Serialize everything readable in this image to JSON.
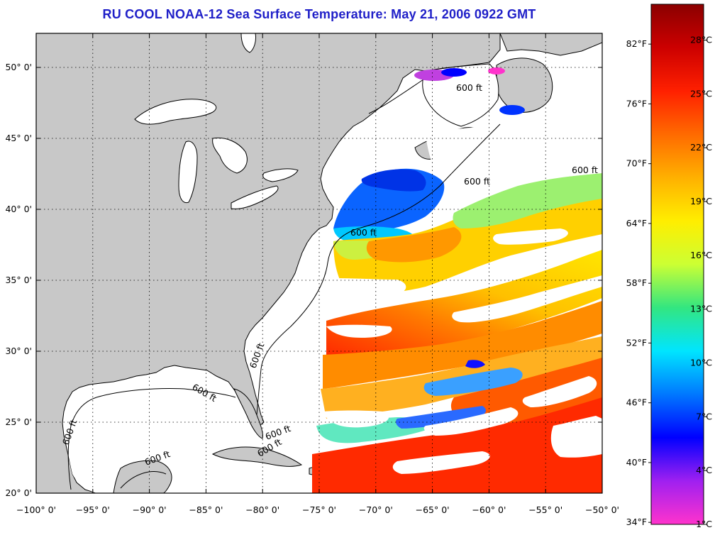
{
  "title": "RU COOL  NOAA-12  Sea Surface Temperature:  May 21, 2006 0922 GMT",
  "map": {
    "lon_range": [
      -100,
      -50
    ],
    "lat_range": [
      20,
      52.4
    ],
    "grid": true,
    "lon_ticks": [
      {
        "value": -100,
        "label": "−100° 0'"
      },
      {
        "value": -95,
        "label": "−95° 0'"
      },
      {
        "value": -90,
        "label": "−90° 0'"
      },
      {
        "value": -85,
        "label": "−85° 0'"
      },
      {
        "value": -80,
        "label": "−80° 0'"
      },
      {
        "value": -75,
        "label": "−75° 0'"
      },
      {
        "value": -70,
        "label": "−70° 0'"
      },
      {
        "value": -65,
        "label": "−65° 0'"
      },
      {
        "value": -60,
        "label": "−60° 0'"
      },
      {
        "value": -55,
        "label": "−55° 0'"
      },
      {
        "value": -50,
        "label": "−50° 0'"
      }
    ],
    "lat_ticks": [
      {
        "value": 20,
        "label": "20° 0'"
      },
      {
        "value": 25,
        "label": "25° 0'"
      },
      {
        "value": 30,
        "label": "30° 0'"
      },
      {
        "value": 35,
        "label": "35° 0'"
      },
      {
        "value": 40,
        "label": "40° 0'"
      },
      {
        "value": 45,
        "label": "45° 0'"
      },
      {
        "value": 50,
        "label": "50° 0'"
      }
    ],
    "isobath_label": "600 ft",
    "colors": {
      "land": "#c8c8c8",
      "cloud": "#ffffff",
      "coast": "#000000"
    }
  },
  "colorbar": {
    "range_c": [
      1,
      30
    ],
    "stops": [
      "#ff33cc",
      "#a020f0",
      "#0000ff",
      "#0078ff",
      "#00e5ff",
      "#33e680",
      "#ccff33",
      "#ffee00",
      "#ffb000",
      "#ff6a00",
      "#ff2000",
      "#cc0000",
      "#8b0000"
    ],
    "fahrenheit_ticks": [
      {
        "value": 34,
        "label": "34°F"
      },
      {
        "value": 40,
        "label": "40°F"
      },
      {
        "value": 46,
        "label": "46°F"
      },
      {
        "value": 52,
        "label": "52°F"
      },
      {
        "value": 58,
        "label": "58°F"
      },
      {
        "value": 64,
        "label": "64°F"
      },
      {
        "value": 70,
        "label": "70°F"
      },
      {
        "value": 76,
        "label": "76°F"
      },
      {
        "value": 82,
        "label": "82°F"
      }
    ],
    "celsius_ticks": [
      {
        "value": 1,
        "label": "1°C"
      },
      {
        "value": 4,
        "label": "4°C"
      },
      {
        "value": 7,
        "label": "7°C"
      },
      {
        "value": 10,
        "label": "10°C"
      },
      {
        "value": 13,
        "label": "13°C"
      },
      {
        "value": 16,
        "label": "16°C"
      },
      {
        "value": 19,
        "label": "19°C"
      },
      {
        "value": 22,
        "label": "22°C"
      },
      {
        "value": 25,
        "label": "25°C"
      },
      {
        "value": 28,
        "label": "28°C"
      }
    ]
  }
}
